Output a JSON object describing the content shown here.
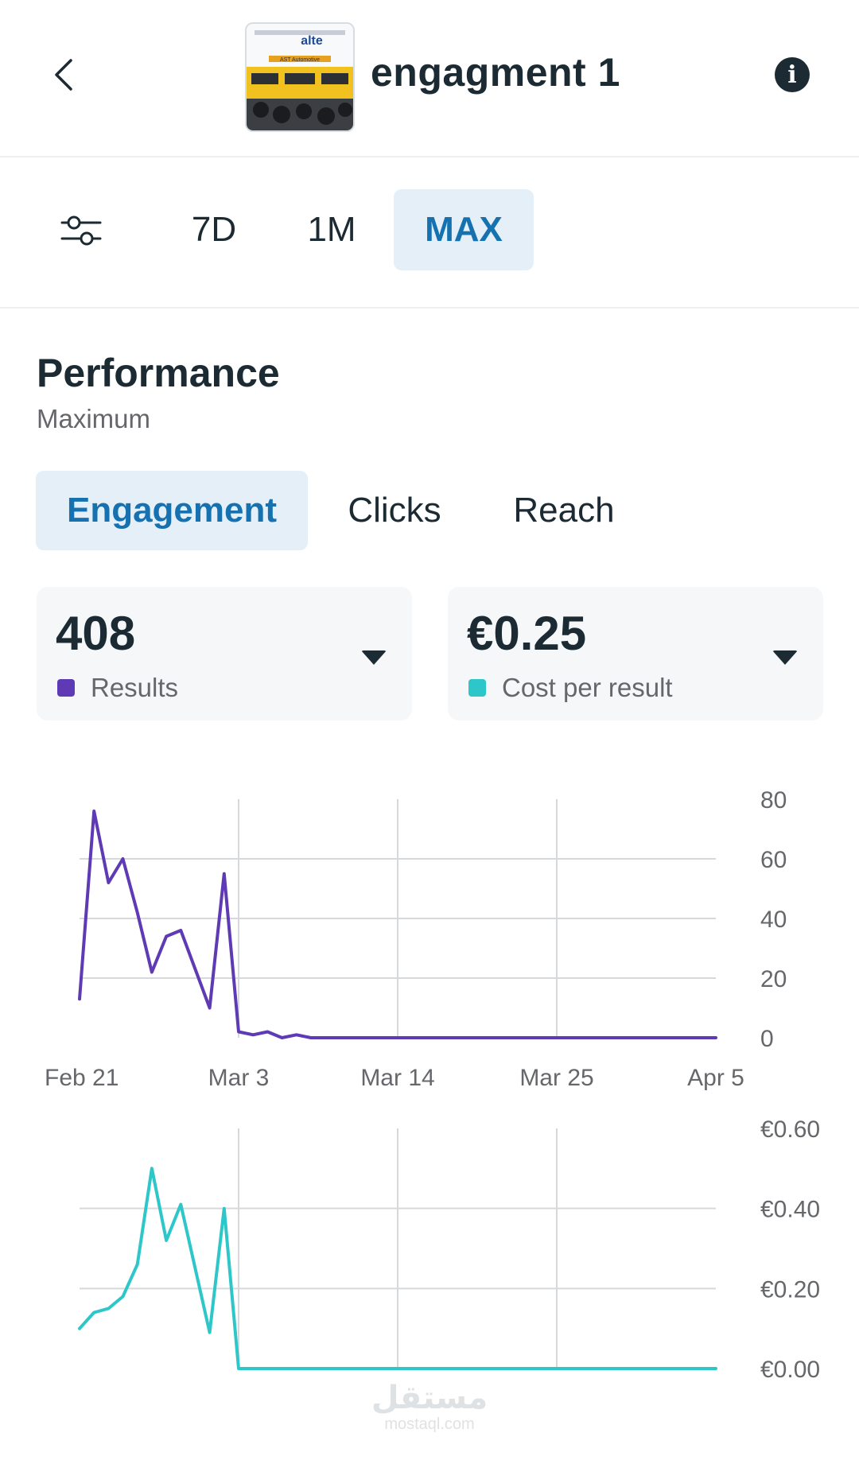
{
  "header": {
    "title": "engagment 1",
    "thumbnail_text": "alte",
    "thumbnail_subtext": "AST Automotive",
    "info_glyph": "i"
  },
  "range": {
    "buttons": [
      {
        "label": "7D",
        "active": false
      },
      {
        "label": "1M",
        "active": false
      },
      {
        "label": "MAX",
        "active": true
      }
    ]
  },
  "performance": {
    "title": "Performance",
    "subtitle": "Maximum",
    "tabs": [
      {
        "label": "Engagement",
        "active": true
      },
      {
        "label": "Clicks",
        "active": false
      },
      {
        "label": "Reach",
        "active": false
      }
    ]
  },
  "metrics": [
    {
      "value": "408",
      "label": "Results",
      "color": "#5e3ab5"
    },
    {
      "value": "€0.25",
      "label": "Cost per result",
      "color": "#2ec7c9"
    }
  ],
  "colors": {
    "accent": "#1571b0",
    "active_bg": "#e4eff8",
    "results_line": "#5e3ab5",
    "cost_line": "#2ec7c9",
    "grid": "#d6d9dc"
  },
  "chart_data": [
    {
      "type": "line",
      "x_tick_labels": [
        "Feb 21",
        "Mar 3",
        "Mar 14",
        "Mar 25",
        "Apr 5"
      ],
      "y_tick_labels": [
        "80",
        "60",
        "40",
        "20",
        "0"
      ],
      "ylim": [
        0,
        80
      ],
      "grid": true,
      "series": [
        {
          "color": "#5e3ab5",
          "x": [
            "Feb 21",
            "Feb 22",
            "Feb 23",
            "Feb 24",
            "Feb 25",
            "Feb 26",
            "Feb 27",
            "Feb 28",
            "Mar 1",
            "Mar 2",
            "Mar 3",
            "Mar 4",
            "Mar 5",
            "Mar 6",
            "Mar 7",
            "Mar 8",
            "Apr 5"
          ],
          "y": [
            13,
            76,
            52,
            60,
            42,
            22,
            34,
            36,
            10,
            55,
            2,
            1,
            2,
            0,
            1,
            0,
            0
          ]
        }
      ]
    },
    {
      "type": "line",
      "x_tick_labels": [],
      "y_tick_labels": [
        "€0.60",
        "€0.40",
        "€0.20",
        "€0.00"
      ],
      "ylim": [
        0,
        0.6
      ],
      "grid": true,
      "series": [
        {
          "color": "#2ec7c9",
          "x": [
            "Feb 21",
            "Feb 22",
            "Feb 23",
            "Feb 24",
            "Feb 25",
            "Feb 26",
            "Feb 27",
            "Feb 28",
            "Mar 1",
            "Mar 2",
            "Mar 3",
            "Apr 5"
          ],
          "y": [
            0.1,
            0.14,
            0.15,
            0.18,
            0.26,
            0.5,
            0.32,
            0.41,
            0.09,
            0.4,
            0,
            0
          ]
        }
      ]
    }
  ],
  "watermark": {
    "text": "مستقل",
    "subtext": "mostaql.com"
  }
}
